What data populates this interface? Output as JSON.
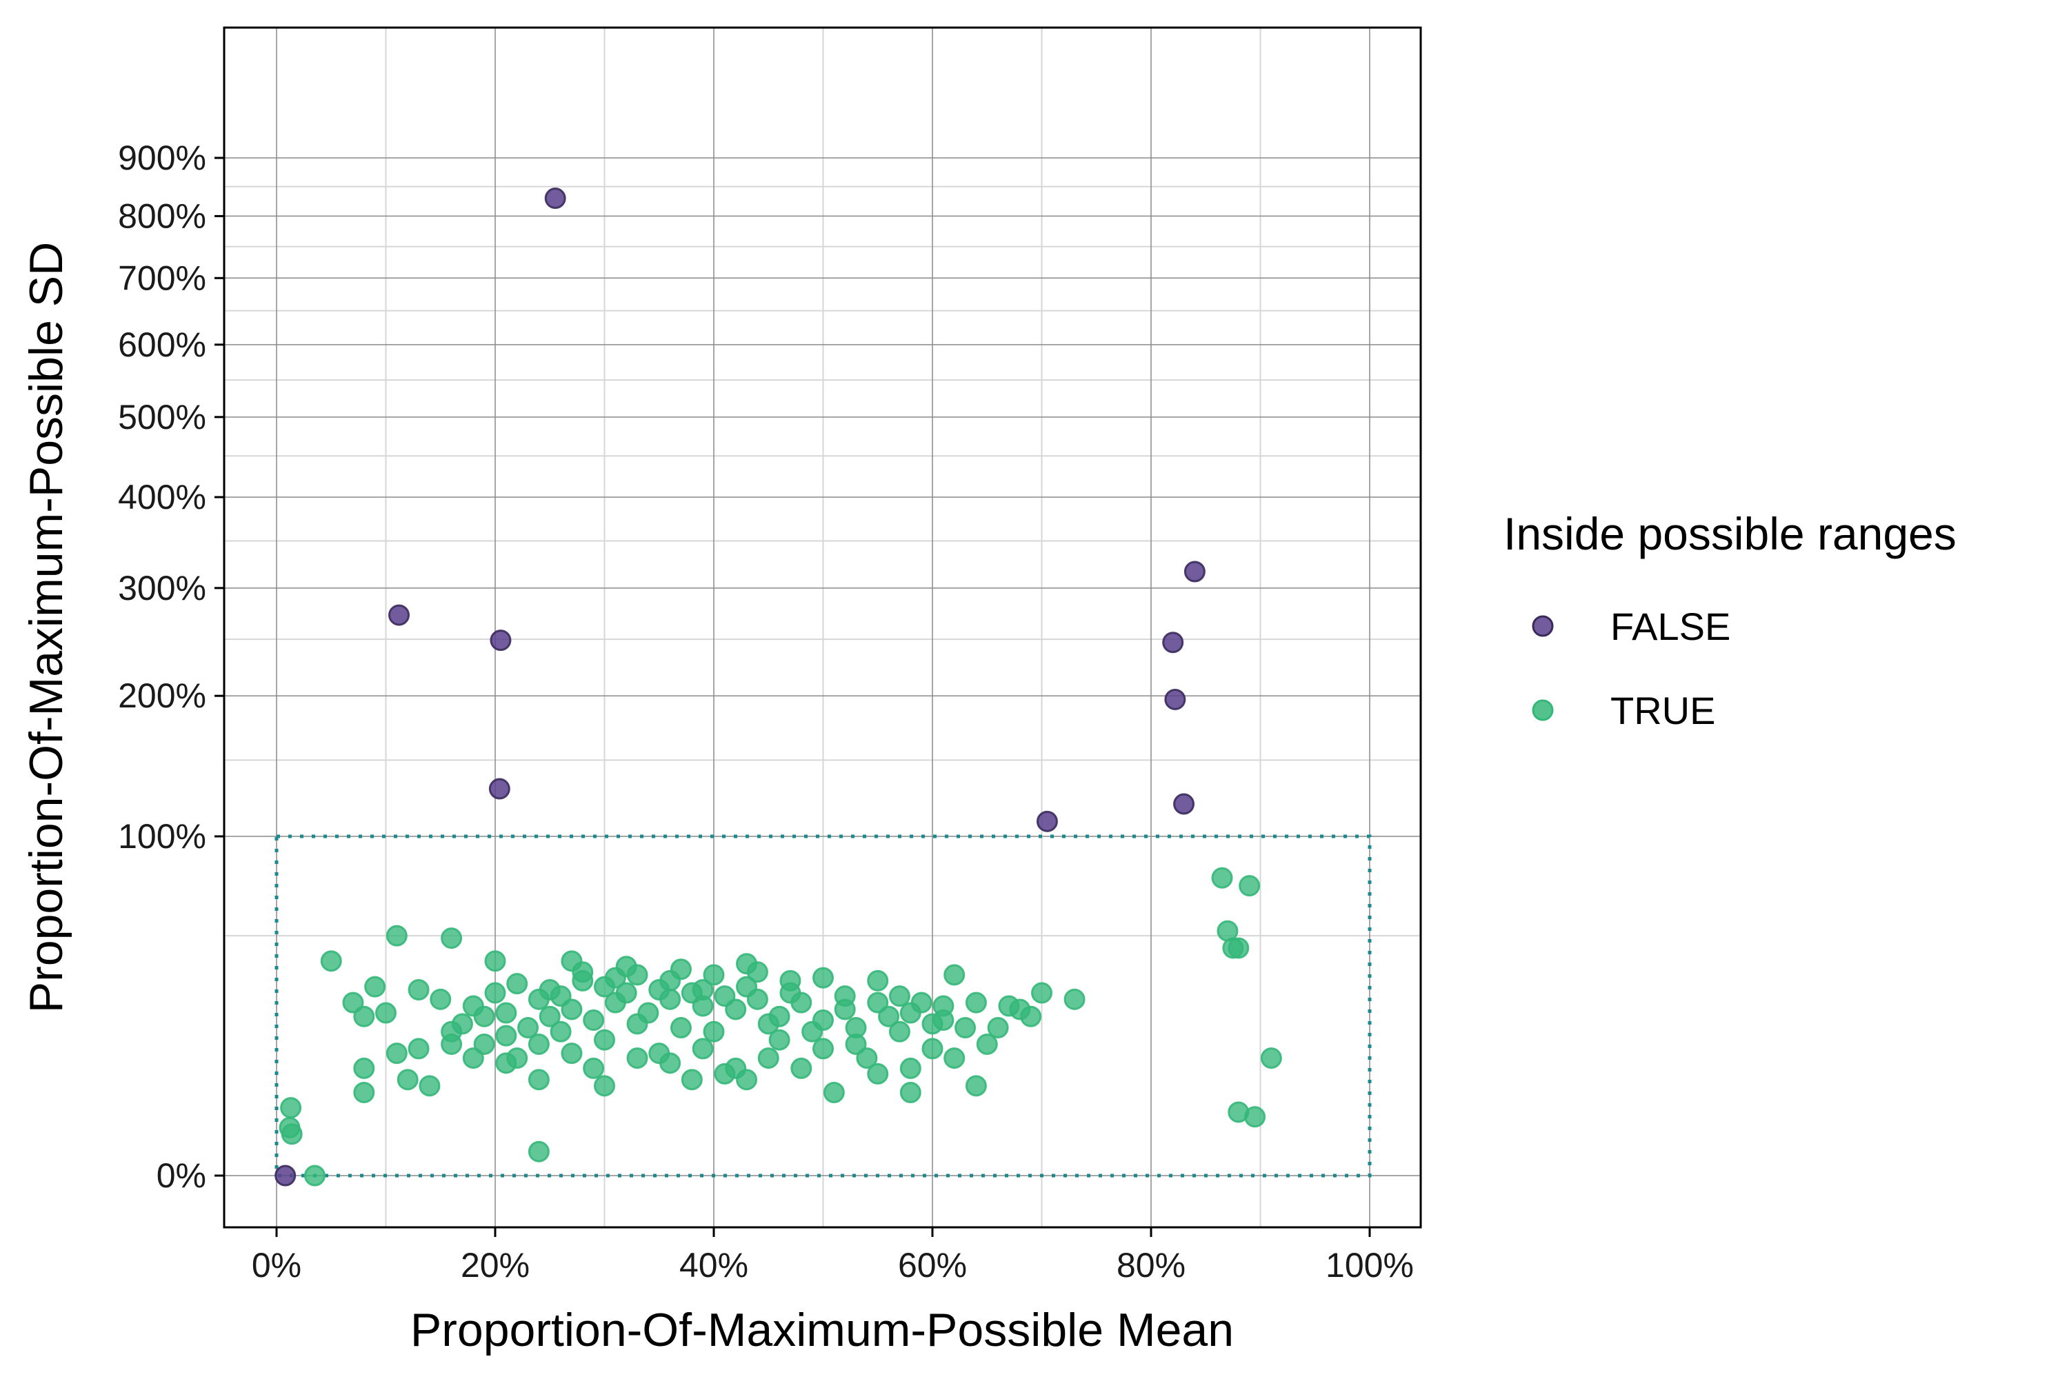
{
  "chart_data": {
    "type": "scatter",
    "title": "",
    "xlabel": "Proportion-Of-Maximum-Possible Mean",
    "ylabel": "Proportion-Of-Maximum-Possible SD",
    "x_ticks": [
      "0%",
      "20%",
      "40%",
      "60%",
      "80%",
      "100%"
    ],
    "y_ticks": [
      "0%",
      "100%",
      "200%",
      "300%",
      "400%",
      "500%",
      "600%",
      "700%",
      "800%",
      "900%"
    ],
    "x_scale": "linear",
    "y_scale": "sqrt",
    "xlim": [
      -0.05,
      1.05
    ],
    "ylim": [
      0,
      9.3
    ],
    "grid": true,
    "legend": {
      "title": "Inside possible ranges",
      "placement": "right",
      "entries": [
        "FALSE",
        "TRUE"
      ]
    },
    "reference_box": {
      "x": [
        0,
        1
      ],
      "y": [
        0,
        1
      ],
      "color": "#1b8a8e",
      "style": "dotted"
    },
    "series": [
      {
        "name": "FALSE",
        "color": "#5b3f8c",
        "points": [
          [
            0.255,
            8.3
          ],
          [
            0.112,
            2.73
          ],
          [
            0.205,
            2.49
          ],
          [
            0.204,
            1.3
          ],
          [
            0.705,
            1.09
          ],
          [
            0.82,
            2.47
          ],
          [
            0.822,
            1.97
          ],
          [
            0.84,
            3.17
          ],
          [
            0.83,
            1.2
          ],
          [
            0.008,
            0.0
          ]
        ]
      },
      {
        "name": "TRUE",
        "color": "#35b779",
        "points": [
          [
            0.05,
            0.4
          ],
          [
            0.11,
            0.5
          ],
          [
            0.16,
            0.49
          ],
          [
            0.2,
            0.4
          ],
          [
            0.27,
            0.4
          ],
          [
            0.32,
            0.38
          ],
          [
            0.43,
            0.39
          ],
          [
            0.09,
            0.31
          ],
          [
            0.07,
            0.26
          ],
          [
            0.08,
            0.22
          ],
          [
            0.1,
            0.23
          ],
          [
            0.13,
            0.3
          ],
          [
            0.13,
            0.14
          ],
          [
            0.12,
            0.08
          ],
          [
            0.14,
            0.07
          ],
          [
            0.08,
            0.1
          ],
          [
            0.08,
            0.06
          ],
          [
            0.11,
            0.13
          ],
          [
            0.16,
            0.15
          ],
          [
            0.19,
            0.15
          ],
          [
            0.21,
            0.17
          ],
          [
            0.24,
            0.15
          ],
          [
            0.26,
            0.18
          ],
          [
            0.3,
            0.16
          ],
          [
            0.35,
            0.13
          ],
          [
            0.38,
            0.08
          ],
          [
            0.42,
            0.1
          ],
          [
            0.43,
            0.08
          ],
          [
            0.45,
            0.12
          ],
          [
            0.5,
            0.14
          ],
          [
            0.55,
            0.09
          ],
          [
            0.58,
            0.1
          ],
          [
            0.62,
            0.12
          ],
          [
            0.64,
            0.07
          ],
          [
            0.51,
            0.06
          ],
          [
            0.54,
            0.12
          ],
          [
            0.58,
            0.06
          ],
          [
            0.7,
            0.29
          ],
          [
            0.73,
            0.27
          ],
          [
            0.68,
            0.24
          ],
          [
            0.66,
            0.19
          ],
          [
            0.62,
            0.35
          ],
          [
            0.61,
            0.25
          ],
          [
            0.013,
            0.04
          ],
          [
            0.014,
            0.015
          ],
          [
            0.012,
            0.02
          ],
          [
            0.035,
            0.0
          ],
          [
            0.24,
            0.005
          ],
          [
            0.33,
            0.35
          ],
          [
            0.28,
            0.36
          ],
          [
            0.36,
            0.33
          ],
          [
            0.4,
            0.35
          ],
          [
            0.47,
            0.33
          ],
          [
            0.5,
            0.34
          ],
          [
            0.55,
            0.33
          ],
          [
            0.57,
            0.28
          ],
          [
            0.59,
            0.26
          ],
          [
            0.64,
            0.26
          ],
          [
            0.67,
            0.25
          ],
          [
            0.69,
            0.22
          ],
          [
            0.865,
            0.77
          ],
          [
            0.89,
            0.73
          ],
          [
            0.87,
            0.52
          ],
          [
            0.875,
            0.45
          ],
          [
            0.88,
            0.45
          ],
          [
            0.91,
            0.12
          ],
          [
            0.88,
            0.035
          ],
          [
            0.895,
            0.03
          ],
          [
            0.24,
            0.08
          ],
          [
            0.3,
            0.07
          ],
          [
            0.22,
            0.32
          ],
          [
            0.25,
            0.3
          ],
          [
            0.3,
            0.31
          ],
          [
            0.35,
            0.3
          ],
          [
            0.38,
            0.29
          ],
          [
            0.41,
            0.28
          ],
          [
            0.44,
            0.27
          ],
          [
            0.48,
            0.26
          ],
          [
            0.52,
            0.24
          ],
          [
            0.56,
            0.22
          ],
          [
            0.6,
            0.2
          ],
          [
            0.18,
            0.25
          ],
          [
            0.21,
            0.23
          ],
          [
            0.25,
            0.22
          ],
          [
            0.29,
            0.21
          ],
          [
            0.33,
            0.2
          ],
          [
            0.37,
            0.19
          ],
          [
            0.4,
            0.18
          ],
          [
            0.45,
            0.2
          ],
          [
            0.49,
            0.18
          ],
          [
            0.17,
            0.2
          ],
          [
            0.19,
            0.22
          ],
          [
            0.23,
            0.19
          ],
          [
            0.27,
            0.24
          ],
          [
            0.31,
            0.26
          ],
          [
            0.34,
            0.23
          ],
          [
            0.39,
            0.25
          ],
          [
            0.42,
            0.24
          ],
          [
            0.46,
            0.22
          ],
          [
            0.5,
            0.21
          ],
          [
            0.53,
            0.19
          ],
          [
            0.57,
            0.18
          ],
          [
            0.61,
            0.21
          ],
          [
            0.63,
            0.19
          ],
          [
            0.26,
            0.28
          ],
          [
            0.28,
            0.33
          ],
          [
            0.32,
            0.29
          ],
          [
            0.36,
            0.27
          ],
          [
            0.39,
            0.3
          ],
          [
            0.43,
            0.31
          ],
          [
            0.47,
            0.29
          ],
          [
            0.52,
            0.28
          ],
          [
            0.55,
            0.26
          ],
          [
            0.58,
            0.23
          ],
          [
            0.44,
            0.36
          ],
          [
            0.37,
            0.37
          ],
          [
            0.31,
            0.34
          ],
          [
            0.24,
            0.27
          ],
          [
            0.2,
            0.29
          ],
          [
            0.15,
            0.27
          ],
          [
            0.16,
            0.18
          ],
          [
            0.22,
            0.12
          ],
          [
            0.27,
            0.13
          ],
          [
            0.33,
            0.12
          ],
          [
            0.39,
            0.14
          ],
          [
            0.46,
            0.16
          ],
          [
            0.53,
            0.15
          ],
          [
            0.6,
            0.14
          ],
          [
            0.65,
            0.15
          ],
          [
            0.48,
            0.1
          ],
          [
            0.41,
            0.09
          ],
          [
            0.36,
            0.11
          ],
          [
            0.29,
            0.1
          ],
          [
            0.21,
            0.11
          ],
          [
            0.18,
            0.12
          ]
        ]
      }
    ]
  }
}
